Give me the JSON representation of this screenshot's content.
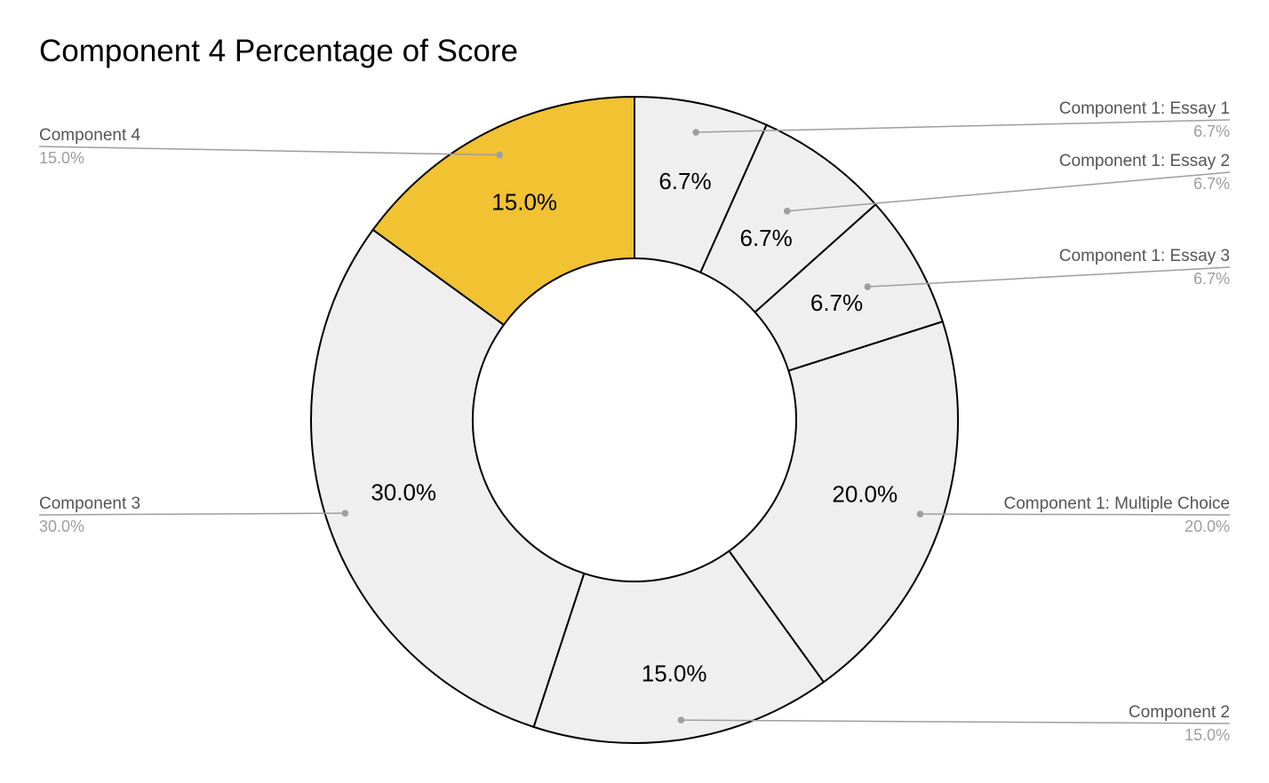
{
  "chart_data": {
    "type": "pie",
    "donut": true,
    "title": "Component 4 Percentage of Score",
    "start_angle_deg": 0,
    "direction": "clockwise",
    "slices": [
      {
        "label": "Component 1: Essay 1",
        "value": 6.7,
        "display": "6.7%",
        "color": "#efefef"
      },
      {
        "label": "Component 1: Essay 2",
        "value": 6.7,
        "display": "6.7%",
        "color": "#efefef"
      },
      {
        "label": "Component 1: Essay 3",
        "value": 6.7,
        "display": "6.7%",
        "color": "#efefef"
      },
      {
        "label": "Component 1: Multiple Choice",
        "value": 20.0,
        "display": "20.0%",
        "color": "#efefef"
      },
      {
        "label": "Component 2",
        "value": 15.0,
        "display": "15.0%",
        "color": "#efefef"
      },
      {
        "label": "Component 3",
        "value": 30.0,
        "display": "30.0%",
        "color": "#efefef"
      },
      {
        "label": "Component 4",
        "value": 15.0,
        "display": "15.0%",
        "color": "#f1c232"
      }
    ],
    "legend": "callout labels on left and right sides",
    "colors": {
      "highlight": "#f1c232",
      "default_slice": "#efefef",
      "slice_border": "#000000",
      "callout": "#9e9e9e",
      "legend_label": "#555555",
      "legend_value": "#9e9e9e"
    }
  }
}
